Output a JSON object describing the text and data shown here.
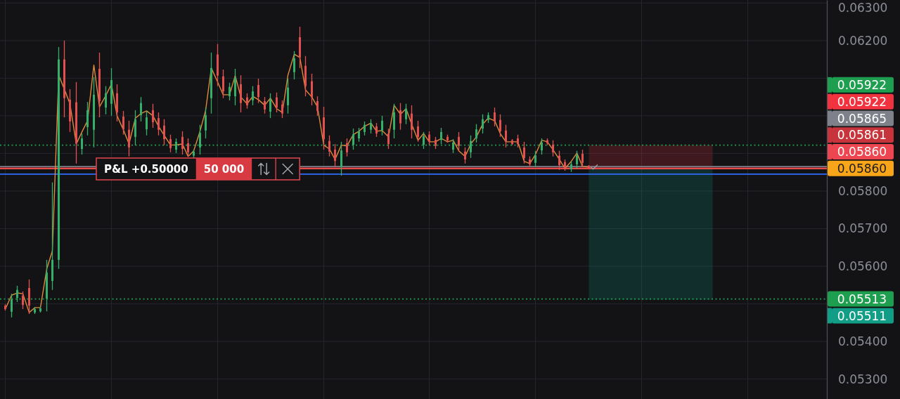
{
  "chart_data": {
    "type": "candlestick",
    "categories": [
      null,
      null,
      null,
      null,
      null,
      null,
      null,
      null,
      null,
      null,
      null,
      null,
      null,
      null,
      null,
      null,
      null,
      null,
      null,
      null,
      null,
      null,
      null,
      null,
      null,
      null,
      null,
      null,
      null,
      null,
      null,
      null,
      null,
      null,
      null,
      null,
      null,
      null,
      null,
      null,
      null,
      null,
      null,
      null,
      null,
      null,
      null,
      null,
      null,
      null,
      null,
      null,
      null,
      null,
      null,
      null,
      null,
      null,
      null,
      null,
      null,
      null,
      null,
      null,
      null,
      null,
      null,
      null,
      null,
      null,
      null,
      null,
      null,
      null,
      null,
      null,
      null,
      null,
      null,
      null,
      null,
      null,
      null,
      null,
      null,
      null,
      null,
      null,
      null,
      null,
      null,
      null,
      null,
      null,
      null,
      null,
      null,
      null,
      null,
      null,
      null,
      null,
      null,
      null,
      null,
      null,
      null,
      null,
      null,
      null,
      null,
      null,
      null,
      null,
      null,
      null,
      null,
      null,
      null,
      null,
      null,
      null,
      null,
      null,
      null,
      null,
      null,
      null,
      null,
      null,
      null,
      null,
      null,
      null,
      null,
      null,
      null,
      null,
      null,
      null
    ],
    "ohlc": [
      [
        0.05495,
        0.05499,
        0.05482,
        0.05486
      ],
      [
        0.05479,
        0.05527,
        0.05464,
        0.05512
      ],
      [
        0.05516,
        0.05548,
        0.05505,
        0.05537
      ],
      [
        0.05522,
        0.05533,
        0.05486,
        0.05497
      ],
      [
        0.05542,
        0.05565,
        0.05473,
        0.05495
      ],
      [
        0.05477,
        0.05492,
        0.05473,
        0.05486
      ],
      [
        0.0548,
        0.05492,
        0.05477,
        0.05488
      ],
      [
        0.05514,
        0.05617,
        0.0548,
        0.05583
      ],
      [
        0.05561,
        0.05823,
        0.05537,
        0.05617
      ],
      [
        0.05617,
        0.06183,
        0.05593,
        0.0615
      ],
      [
        0.0615,
        0.062,
        0.05996,
        0.06047
      ],
      [
        0.06043,
        0.06071,
        0.05957,
        0.05985
      ],
      [
        0.06036,
        0.0609,
        0.05873,
        0.05927
      ],
      [
        0.05912,
        0.05953,
        0.05897,
        0.0594
      ],
      [
        0.0597,
        0.06037,
        0.05948,
        0.06015
      ],
      [
        0.05963,
        0.06103,
        0.05916,
        0.06056
      ],
      [
        0.06125,
        0.06168,
        0.05996,
        0.06039
      ],
      [
        0.06022,
        0.06079,
        0.06004,
        0.0606
      ],
      [
        0.06032,
        0.06127,
        0.06,
        0.06095
      ],
      [
        0.0606,
        0.06084,
        0.05985,
        0.06009
      ],
      [
        0.05998,
        0.06013,
        0.0595,
        0.05964
      ],
      [
        0.05963,
        0.05987,
        0.05892,
        0.05916
      ],
      [
        0.05944,
        0.06015,
        0.05922,
        0.05991
      ],
      [
        0.06002,
        0.0605,
        0.05985,
        0.06034
      ],
      [
        0.05964,
        0.06013,
        0.05948,
        0.05996
      ],
      [
        0.06015,
        0.06032,
        0.05968,
        0.05983
      ],
      [
        0.05994,
        0.06009,
        0.05948,
        0.05963
      ],
      [
        0.05974,
        0.05991,
        0.05922,
        0.05938
      ],
      [
        0.05938,
        0.0595,
        0.05903,
        0.05914
      ],
      [
        0.0591,
        0.0594,
        0.05901,
        0.05931
      ],
      [
        0.05944,
        0.05959,
        0.05897,
        0.05912
      ],
      [
        0.05927,
        0.0594,
        0.05892,
        0.05903
      ],
      [
        0.05894,
        0.0591,
        0.05888,
        0.05905
      ],
      [
        0.05916,
        0.05976,
        0.05897,
        0.05955
      ],
      [
        0.05961,
        0.06022,
        0.0594,
        0.06002
      ],
      [
        0.06047,
        0.06168,
        0.06006,
        0.06127
      ],
      [
        0.06163,
        0.06191,
        0.06079,
        0.06107
      ],
      [
        0.06105,
        0.06123,
        0.06047,
        0.06065
      ],
      [
        0.06052,
        0.06088,
        0.06041,
        0.06077
      ],
      [
        0.06052,
        0.06125,
        0.06028,
        0.06101
      ],
      [
        0.06084,
        0.06108,
        0.06009,
        0.06034
      ],
      [
        0.06049,
        0.0606,
        0.06019,
        0.06028
      ],
      [
        0.06041,
        0.06079,
        0.06028,
        0.06065
      ],
      [
        0.06082,
        0.06099,
        0.06034,
        0.0605
      ],
      [
        0.06039,
        0.0605,
        0.06006,
        0.06017
      ],
      [
        0.06011,
        0.0606,
        0.05994,
        0.06043
      ],
      [
        0.06049,
        0.06062,
        0.06009,
        0.06022
      ],
      [
        0.0603,
        0.06041,
        0.05994,
        0.06006
      ],
      [
        0.06028,
        0.06099,
        0.06006,
        0.06075
      ],
      [
        0.06116,
        0.06172,
        0.06097,
        0.06153
      ],
      [
        0.06209,
        0.06237,
        0.06127,
        0.06155
      ],
      [
        0.06133,
        0.06159,
        0.06052,
        0.06079
      ],
      [
        0.06092,
        0.06112,
        0.06028,
        0.06049
      ],
      [
        0.06039,
        0.06052,
        0.06,
        0.06013
      ],
      [
        0.05996,
        0.06024,
        0.0591,
        0.05938
      ],
      [
        0.05933,
        0.05948,
        0.05892,
        0.05905
      ],
      [
        0.0591,
        0.05925,
        0.05865,
        0.0588
      ],
      [
        0.05864,
        0.05931,
        0.05841,
        0.05908
      ],
      [
        0.05927,
        0.0594,
        0.05892,
        0.05903
      ],
      [
        0.05923,
        0.05966,
        0.0591,
        0.05951
      ],
      [
        0.0594,
        0.05968,
        0.05931,
        0.05959
      ],
      [
        0.05957,
        0.05985,
        0.05948,
        0.05976
      ],
      [
        0.05963,
        0.05991,
        0.05953,
        0.05981
      ],
      [
        0.05972,
        0.05981,
        0.05944,
        0.05953
      ],
      [
        0.05961,
        0.06,
        0.05948,
        0.05987
      ],
      [
        0.05953,
        0.05966,
        0.05912,
        0.05925
      ],
      [
        0.05963,
        0.06032,
        0.0594,
        0.06009
      ],
      [
        0.06015,
        0.06034,
        0.05963,
        0.0598
      ],
      [
        0.05991,
        0.06032,
        0.05978,
        0.06019
      ],
      [
        0.06006,
        0.06028,
        0.0594,
        0.05963
      ],
      [
        0.05972,
        0.05987,
        0.05931,
        0.05944
      ],
      [
        0.05923,
        0.05957,
        0.05912,
        0.05946
      ],
      [
        0.0595,
        0.05959,
        0.05922,
        0.05931
      ],
      [
        0.05936,
        0.05944,
        0.05912,
        0.0592
      ],
      [
        0.05936,
        0.05968,
        0.05925,
        0.05957
      ],
      [
        0.05944,
        0.0595,
        0.05929,
        0.05935
      ],
      [
        0.0591,
        0.05938,
        0.05901,
        0.05929
      ],
      [
        0.05944,
        0.05957,
        0.05907,
        0.0592
      ],
      [
        0.05905,
        0.05916,
        0.05873,
        0.05884
      ],
      [
        0.05903,
        0.05948,
        0.05888,
        0.05933
      ],
      [
        0.0594,
        0.05978,
        0.05929,
        0.05964
      ],
      [
        0.05966,
        0.06004,
        0.05953,
        0.05991
      ],
      [
        0.05989,
        0.06009,
        0.05981,
        0.06002
      ],
      [
        0.06009,
        0.06022,
        0.05972,
        0.05985
      ],
      [
        0.05989,
        0.06004,
        0.05944,
        0.05959
      ],
      [
        0.05961,
        0.05976,
        0.05916,
        0.05931
      ],
      [
        0.05935,
        0.05938,
        0.05922,
        0.05925
      ],
      [
        0.0594,
        0.0595,
        0.05916,
        0.05925
      ],
      [
        0.05916,
        0.05931,
        0.05873,
        0.05888
      ],
      [
        0.05884,
        0.05892,
        0.05864,
        0.05871
      ],
      [
        0.05875,
        0.05907,
        0.05864,
        0.05895
      ],
      [
        0.05908,
        0.0594,
        0.05897,
        0.05929
      ],
      [
        0.05935,
        0.0594,
        0.05922,
        0.05927
      ],
      [
        0.05923,
        0.05935,
        0.05892,
        0.05903
      ],
      [
        0.05894,
        0.05907,
        0.05856,
        0.05869
      ],
      [
        0.05877,
        0.05884,
        0.05854,
        0.05862
      ],
      [
        0.05858,
        0.05879,
        0.05851,
        0.05871
      ],
      [
        0.05871,
        0.05907,
        0.0586,
        0.05895
      ],
      [
        0.05899,
        0.0591,
        0.05864,
        0.05875
      ],
      [
        0.05867,
        0.05869,
        0.0586,
        0.05861
      ],
      null,
      null,
      null,
      null,
      null,
      null,
      null,
      null,
      null,
      null,
      null,
      null,
      null,
      null,
      null,
      null,
      null,
      null,
      null,
      null,
      null,
      null,
      null,
      null,
      null,
      null,
      null,
      null,
      null,
      null,
      null,
      null,
      null,
      null,
      null,
      null,
      null,
      null,
      null,
      null
    ],
    "colors": [
      "#e2504f",
      "#35b06a",
      "#35b06a",
      "#e2504f",
      "#e2504f",
      "#35b06a",
      "#35b06a",
      "#35b06a",
      "#35b06a",
      "#35b06a",
      "#e2504f",
      "#e2504f",
      "#e2504f",
      "#35b06a",
      "#35b06a",
      "#35b06a",
      "#e2504f",
      "#35b06a",
      "#35b06a",
      "#e2504f",
      "#e2504f",
      "#e2504f",
      "#35b06a",
      "#35b06a",
      "#35b06a",
      "#e2504f",
      "#e2504f",
      "#e2504f",
      "#e2504f",
      "#35b06a",
      "#e2504f",
      "#e2504f",
      "#35b06a",
      "#35b06a",
      "#35b06a",
      "#35b06a",
      "#e2504f",
      "#e2504f",
      "#35b06a",
      "#35b06a",
      "#e2504f",
      "#e2504f",
      "#35b06a",
      "#e2504f",
      "#e2504f",
      "#35b06a",
      "#e2504f",
      "#e2504f",
      "#35b06a",
      "#35b06a",
      "#e2504f",
      "#e2504f",
      "#e2504f",
      "#e2504f",
      "#e2504f",
      "#e2504f",
      "#e2504f",
      "#35b06a",
      "#e2504f",
      "#35b06a",
      "#35b06a",
      "#35b06a",
      "#35b06a",
      "#e2504f",
      "#35b06a",
      "#e2504f",
      "#35b06a",
      "#e2504f",
      "#35b06a",
      "#e2504f",
      "#e2504f",
      "#35b06a",
      "#e2504f",
      "#e2504f",
      "#35b06a",
      "#e2504f",
      "#35b06a",
      "#e2504f",
      "#e2504f",
      "#35b06a",
      "#35b06a",
      "#35b06a",
      "#35b06a",
      "#e2504f",
      "#e2504f",
      "#e2504f",
      "#e2504f",
      "#e2504f",
      "#e2504f",
      "#e2504f",
      "#35b06a",
      "#35b06a",
      "#e2504f",
      "#e2504f",
      "#e2504f",
      "#e2504f",
      "#35b06a",
      "#35b06a",
      "#e2504f",
      "#e2504f",
      null,
      null,
      null,
      null,
      null,
      null,
      null,
      null,
      null,
      null,
      null,
      null,
      null,
      null,
      null,
      null,
      null,
      null,
      null,
      null,
      null,
      null,
      null,
      null,
      null,
      null,
      null,
      null,
      null,
      null,
      null,
      null,
      null,
      null,
      null,
      null,
      null,
      null,
      null,
      null
    ],
    "series": [
      {
        "type": "line",
        "color": "#dc8a3c",
        "values": [
          0.05486,
          0.05523,
          0.05529,
          0.05527,
          0.05477,
          0.0549,
          0.0549,
          0.05593,
          0.05641,
          0.06108,
          0.06071,
          0.06032,
          0.05925,
          0.05957,
          0.05987,
          0.06135,
          0.06024,
          0.06054,
          0.06084,
          0.06,
          0.05963,
          0.05925,
          0.05994,
          0.06006,
          0.06013,
          0.06,
          0.05972,
          0.05948,
          0.05922,
          0.05923,
          0.05925,
          0.05892,
          0.05907,
          0.05959,
          0.06015,
          0.06127,
          0.0609,
          0.06056,
          0.06056,
          0.06107,
          0.0605,
          0.06032,
          0.06052,
          0.06043,
          0.06028,
          0.06047,
          0.06019,
          0.06009,
          0.06108,
          0.06164,
          0.06155,
          0.06069,
          0.0605,
          0.06024,
          0.05922,
          0.05912,
          0.05884,
          0.05922,
          0.0592,
          0.0595,
          0.05959,
          0.05972,
          0.05981,
          0.05959,
          0.05961,
          0.05944,
          0.06028,
          0.06004,
          0.06019,
          0.05978,
          0.05935,
          0.05953,
          0.05931,
          0.05931,
          0.0594,
          0.05931,
          0.05935,
          0.05907,
          0.05892,
          0.05925,
          0.05944,
          0.05978,
          0.05994,
          0.05987,
          0.05953,
          0.05931,
          0.05931,
          0.05931,
          0.05879,
          0.05873,
          0.05897,
          0.05935,
          0.05931,
          0.0591,
          0.05884,
          0.0586,
          0.05879,
          0.05901,
          0.05865,
          0.05864,
          null,
          null,
          null,
          null,
          null,
          null,
          null,
          null,
          null,
          null,
          null,
          null,
          null,
          null,
          null,
          null,
          null,
          null,
          null,
          null,
          null,
          null,
          null,
          null,
          null,
          null,
          null,
          null,
          null,
          null,
          null,
          null,
          null,
          null,
          null,
          null,
          null,
          null,
          null,
          null
        ]
      }
    ],
    "ylim": [
      0.05247,
      0.06308
    ],
    "yticks": [
      {
        "value": 0.053,
        "label": "0.05300"
      },
      {
        "value": 0.054,
        "label": "0.05400"
      },
      {
        "value": 0.055,
        "label": null
      },
      {
        "value": 0.056,
        "label": "0.05600"
      },
      {
        "value": 0.057,
        "label": "0.05700"
      },
      {
        "value": 0.058,
        "label": "0.05800"
      },
      {
        "value": 0.059,
        "label": null
      },
      {
        "value": 0.06,
        "label": null
      },
      {
        "value": 0.061,
        "label": null
      },
      {
        "value": 0.062,
        "label": "0.06200"
      },
      {
        "value": 0.063,
        "label": "0.06300"
      }
    ],
    "tick_labels": "y",
    "grid": true,
    "legend": "right",
    "ref_lines": [
      {
        "axis": "y",
        "value": 0.05922,
        "label": "0.05922",
        "color": "#1e9e4f",
        "line_style": "dotted"
      },
      {
        "axis": "y",
        "value": 0.05865,
        "label": "0.05865",
        "color": "#7e818a"
      },
      {
        "axis": "y",
        "value": 0.05861,
        "label": "0.05861",
        "color": "#c8343b"
      },
      {
        "axis": "y",
        "value": 0.0586,
        "label": "0.05860",
        "color": "#f9a51a"
      },
      {
        "axis": "y",
        "value": 0.0586,
        "label": "0.05860",
        "color": "#ee4651"
      },
      {
        "axis": "y",
        "value": 0.05845,
        "color": "#2f6bff"
      },
      {
        "axis": "y",
        "value": 0.05513,
        "label": "0.05513",
        "color": "#1e9e4f",
        "line_style": "dotted"
      }
    ],
    "bands": [
      {
        "axis": "y",
        "from": 0.0586,
        "to": 0.05922,
        "label": "0.05922",
        "color": "#f0333f"
      },
      {
        "axis": "y",
        "from": 0.0586,
        "to": 0.05511,
        "label": "0.05511",
        "color": "#119d86"
      }
    ],
    "annotations": [
      "P&L +0.50000",
      "50 000"
    ]
  }
}
